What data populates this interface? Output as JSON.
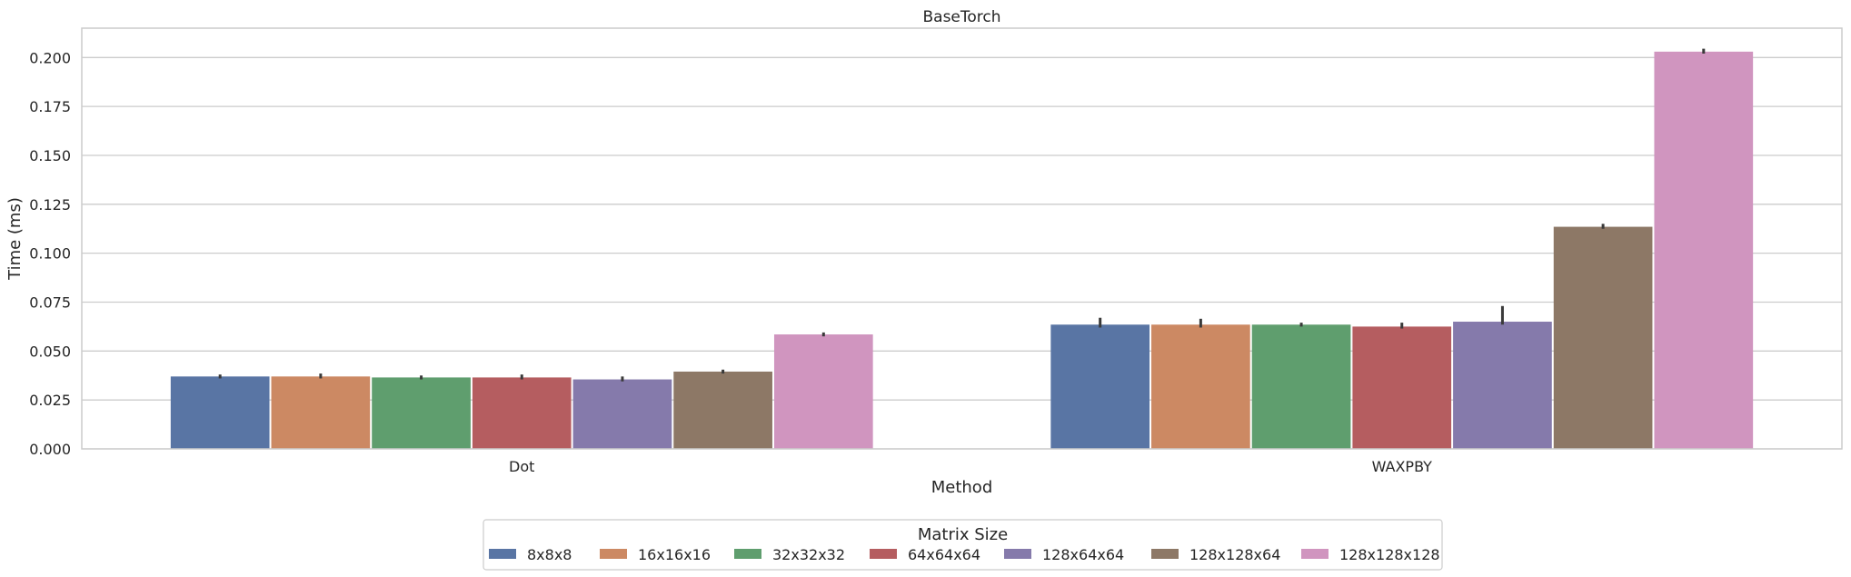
{
  "chart_data": {
    "type": "bar",
    "title": "BaseTorch",
    "xlabel": "Method",
    "ylabel": "Time (ms)",
    "categories": [
      "Dot",
      "WAXPBY"
    ],
    "ylim": [
      0,
      0.215
    ],
    "yticks": [
      0.0,
      0.025,
      0.05,
      0.075,
      0.1,
      0.125,
      0.15,
      0.175,
      0.2
    ],
    "ytick_labels": [
      "0.000",
      "0.025",
      "0.050",
      "0.075",
      "0.100",
      "0.125",
      "0.150",
      "0.175",
      "0.200"
    ],
    "grid": true,
    "legend": {
      "title": "Matrix Size",
      "placement": "bottom-center"
    },
    "series": [
      {
        "name": "8x8x8",
        "color": "#5975a4",
        "values": [
          0.037,
          0.0635
        ],
        "err_low": [
          0.036,
          0.062
        ],
        "err_high": [
          0.038,
          0.067
        ]
      },
      {
        "name": "16x16x16",
        "color": "#cc8963",
        "values": [
          0.037,
          0.0635
        ],
        "err_low": [
          0.036,
          0.062
        ],
        "err_high": [
          0.0385,
          0.0665
        ]
      },
      {
        "name": "32x32x32",
        "color": "#5f9e6e",
        "values": [
          0.0365,
          0.0635
        ],
        "err_low": [
          0.0355,
          0.0625
        ],
        "err_high": [
          0.0375,
          0.0645
        ]
      },
      {
        "name": "64x64x64",
        "color": "#b55d60",
        "values": [
          0.0365,
          0.0625
        ],
        "err_low": [
          0.0355,
          0.0615
        ],
        "err_high": [
          0.038,
          0.0645
        ]
      },
      {
        "name": "128x64x64",
        "color": "#857aab",
        "values": [
          0.0355,
          0.065
        ],
        "err_low": [
          0.0345,
          0.0635
        ],
        "err_high": [
          0.037,
          0.073
        ]
      },
      {
        "name": "128x128x64",
        "color": "#8d7866",
        "values": [
          0.0395,
          0.1135
        ],
        "err_low": [
          0.0385,
          0.1125
        ],
        "err_high": [
          0.0405,
          0.115
        ]
      },
      {
        "name": "128x128x128",
        "color": "#d095bf",
        "values": [
          0.0585,
          0.203
        ],
        "err_low": [
          0.0575,
          0.202
        ],
        "err_high": [
          0.0595,
          0.2045
        ]
      }
    ]
  }
}
